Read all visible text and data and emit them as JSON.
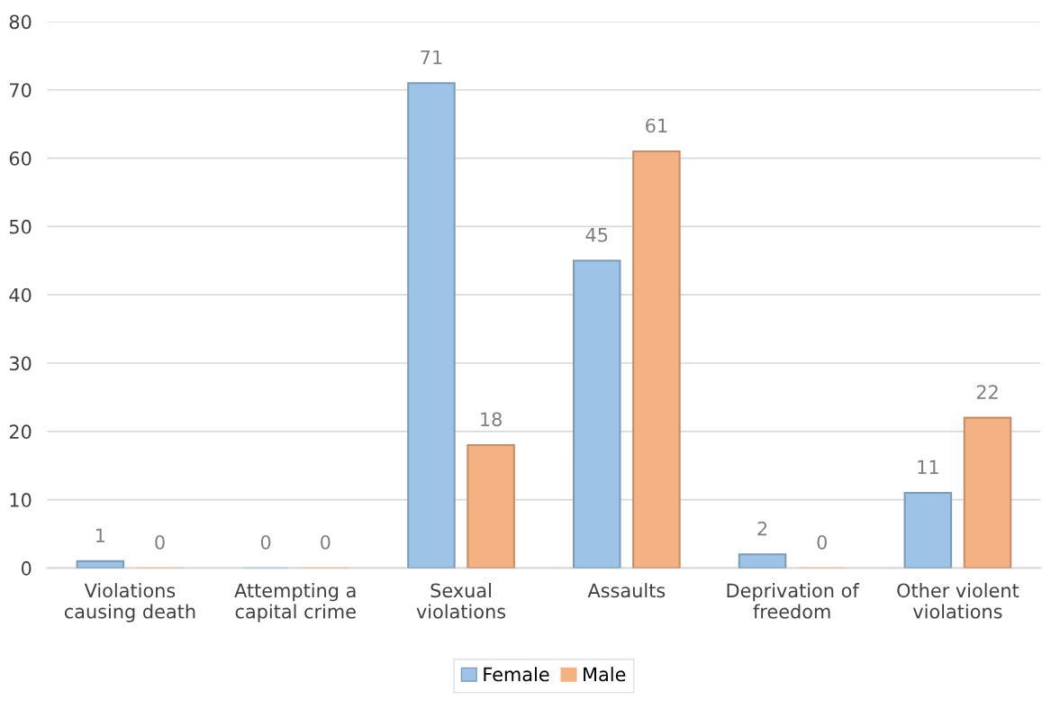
{
  "chart_data": {
    "type": "bar",
    "categories": [
      "Violations\ncausing death",
      "Attempting a\ncapital crime",
      "Sexual\nviolations",
      "Assaults",
      "Deprivation of\nfreedom",
      "Other violent\nviolations"
    ],
    "series": [
      {
        "name": "Female",
        "color": "#9dc3e6",
        "values": [
          1,
          0,
          71,
          45,
          2,
          11
        ]
      },
      {
        "name": "Male",
        "color": "#f4b183",
        "values": [
          0,
          0,
          18,
          61,
          0,
          22
        ]
      }
    ],
    "ylim": [
      0,
      80
    ],
    "yticks": [
      0,
      10,
      20,
      30,
      40,
      50,
      60,
      70,
      80
    ],
    "grid": "y",
    "legend": "bottom",
    "data_labels": true
  }
}
